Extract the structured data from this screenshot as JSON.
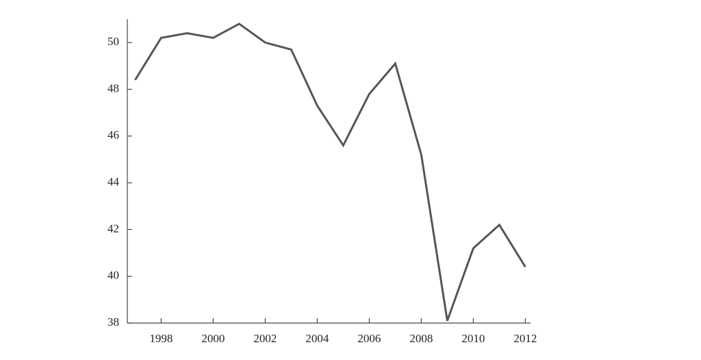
{
  "chart_data": {
    "type": "line",
    "x": [
      1997,
      1998,
      1999,
      2000,
      2001,
      2002,
      2003,
      2004,
      2005,
      2006,
      2007,
      2008,
      2009,
      2010,
      2011,
      2012
    ],
    "values": [
      48.4,
      50.2,
      50.4,
      50.2,
      50.8,
      50.0,
      49.7,
      47.3,
      45.6,
      47.8,
      49.1,
      45.2,
      38.1,
      41.2,
      42.2,
      40.4
    ],
    "color": "#555555",
    "xlim": [
      1996.7,
      2012.2
    ],
    "xticks": [
      1998,
      2000,
      2002,
      2004,
      2006,
      2008,
      2010,
      2012
    ],
    "ylim": [
      38,
      51
    ],
    "yticks": [
      38,
      40,
      42,
      44,
      46,
      48,
      50
    ]
  }
}
